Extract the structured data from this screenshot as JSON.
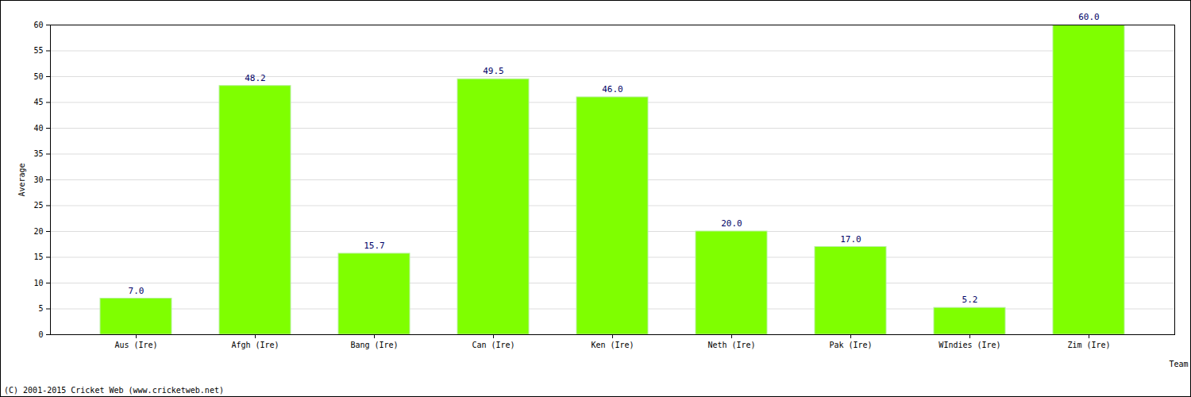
{
  "chart_data": {
    "type": "bar",
    "categories": [
      "Aus (Ire)",
      "Afgh (Ire)",
      "Bang (Ire)",
      "Can (Ire)",
      "Ken (Ire)",
      "Neth (Ire)",
      "Pak (Ire)",
      "WIndies (Ire)",
      "Zim (Ire)"
    ],
    "values": [
      7.0,
      48.2,
      15.7,
      49.5,
      46.0,
      20.0,
      17.0,
      5.2,
      60.0
    ],
    "value_labels": [
      "7.0",
      "48.2",
      "15.7",
      "49.5",
      "46.0",
      "20.0",
      "17.0",
      "5.2",
      "60.0"
    ],
    "data_labels": true,
    "color": "#7fff00",
    "x_label": "Team",
    "y_label": "Average",
    "caption": "(C) 2001-2015 Cricket Web (www.cricketweb.net)",
    "ylim": [
      0,
      60
    ],
    "yticks": [
      0,
      5,
      10,
      15,
      20,
      25,
      30,
      35,
      40,
      45,
      50,
      55,
      60
    ],
    "grid": true
  }
}
